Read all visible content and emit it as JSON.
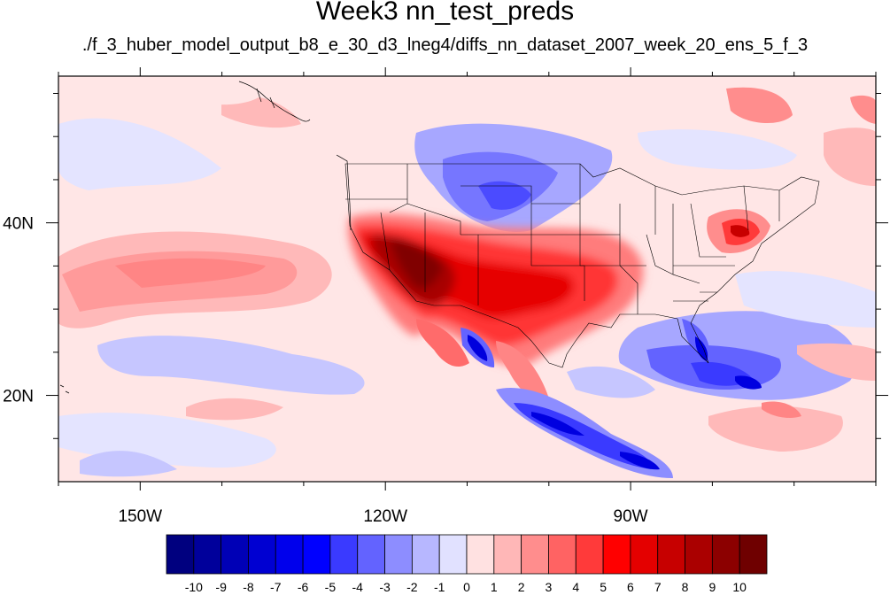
{
  "title": "Week3 nn_test_preds",
  "subtitle": "./f_3_huber_model_output_b8_e_30_d3_lneg4/diffs_nn_dataset_2007_week_20_ens_5_f_3",
  "map": {
    "lon_range": [
      -160,
      -60
    ],
    "lat_range": [
      10,
      57
    ],
    "lon_ticks": [
      {
        "value": -150,
        "label": "150W"
      },
      {
        "value": -120,
        "label": "120W"
      },
      {
        "value": -90,
        "label": "90W"
      }
    ],
    "lat_ticks": [
      {
        "value": 40,
        "label": "40N"
      },
      {
        "value": 20,
        "label": "20N"
      }
    ]
  },
  "colorbar": {
    "labels": [
      "-10",
      "-9",
      "-8",
      "-7",
      "-6",
      "-5",
      "-4",
      "-3",
      "-2",
      "-1",
      "0",
      "1",
      "2",
      "3",
      "4",
      "5",
      "6",
      "7",
      "8",
      "9",
      "10"
    ],
    "colors": [
      "#00007f",
      "#00009b",
      "#0000b6",
      "#0000d2",
      "#0000ec",
      "#0000ff",
      "#3a3aff",
      "#6363ff",
      "#8d8dff",
      "#b7b7ff",
      "#e1e1ff",
      "#ffe1e1",
      "#ffb7b7",
      "#ff8d8d",
      "#ff6363",
      "#ff3a3a",
      "#ff0000",
      "#e40000",
      "#c70000",
      "#aa0000",
      "#8c0000",
      "#6f0000"
    ]
  }
}
